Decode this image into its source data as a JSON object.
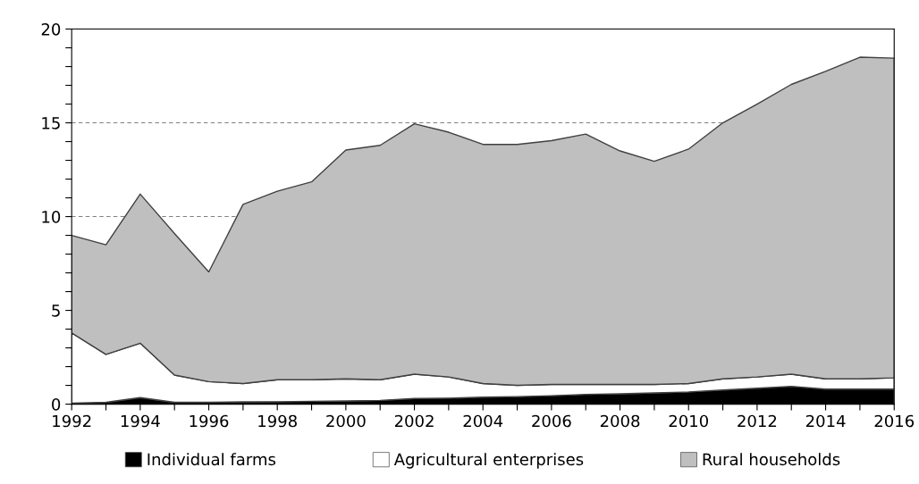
{
  "chart_data": {
    "type": "area",
    "stacked": true,
    "x": [
      1992,
      1993,
      1994,
      1995,
      1996,
      1997,
      1998,
      1999,
      2000,
      2001,
      2002,
      2003,
      2004,
      2005,
      2006,
      2007,
      2008,
      2009,
      2010,
      2011,
      2012,
      2013,
      2014,
      2015,
      2016
    ],
    "series": [
      {
        "name": "Individual farms",
        "color": "#000000",
        "values": [
          0.05,
          0.1,
          0.35,
          0.1,
          0.1,
          0.12,
          0.13,
          0.15,
          0.17,
          0.2,
          0.3,
          0.32,
          0.37,
          0.4,
          0.45,
          0.52,
          0.55,
          0.6,
          0.65,
          0.75,
          0.85,
          0.95,
          0.8,
          0.8,
          0.8
        ]
      },
      {
        "name": "Agricultural enterprises",
        "color": "#ffffff",
        "values": [
          3.75,
          2.55,
          2.9,
          1.45,
          1.1,
          0.98,
          1.17,
          1.15,
          1.18,
          1.1,
          1.3,
          1.13,
          0.73,
          0.6,
          0.6,
          0.53,
          0.5,
          0.45,
          0.45,
          0.6,
          0.6,
          0.65,
          0.55,
          0.55,
          0.6
        ]
      },
      {
        "name": "Rural households",
        "color": "#bfbfbf",
        "values": [
          5.2,
          5.85,
          7.95,
          7.55,
          5.85,
          9.55,
          10.05,
          10.55,
          12.2,
          12.5,
          13.35,
          13.05,
          12.75,
          12.85,
          13.0,
          13.35,
          12.45,
          11.9,
          12.5,
          13.65,
          14.55,
          15.45,
          16.4,
          17.15,
          17.05
        ]
      }
    ],
    "xlim": [
      1992,
      2016
    ],
    "xticks": [
      1992,
      {
        "value": 1993,
        "label": null
      },
      1994,
      {
        "value": 1995,
        "label": null
      },
      1996,
      {
        "value": 1997,
        "label": null
      },
      1998,
      {
        "value": 1999,
        "label": null
      },
      2000,
      {
        "value": 2001,
        "label": null
      },
      2002,
      {
        "value": 2003,
        "label": null
      },
      2004,
      {
        "value": 2005,
        "label": null
      },
      2006,
      {
        "value": 2007,
        "label": null
      },
      2008,
      {
        "value": 2009,
        "label": null
      },
      2010,
      {
        "value": 2011,
        "label": null
      },
      2012,
      {
        "value": 2013,
        "label": null
      },
      2014,
      {
        "value": 2015,
        "label": null
      },
      2016
    ],
    "ylim": [
      0,
      20
    ],
    "yticks": [
      0,
      {
        "value": 1,
        "label": null
      },
      {
        "value": 2,
        "label": null
      },
      {
        "value": 3,
        "label": null
      },
      {
        "value": 4,
        "label": null
      },
      5,
      {
        "value": 6,
        "label": null
      },
      {
        "value": 7,
        "label": null
      },
      {
        "value": 8,
        "label": null
      },
      {
        "value": 9,
        "label": null
      },
      10,
      {
        "value": 11,
        "label": null
      },
      {
        "value": 12,
        "label": null
      },
      {
        "value": 13,
        "label": null
      },
      {
        "value": 14,
        "label": null
      },
      15,
      {
        "value": 16,
        "label": null
      },
      {
        "value": 17,
        "label": null
      },
      {
        "value": 18,
        "label": null
      },
      {
        "value": 19,
        "label": null
      },
      20
    ],
    "grid": "y",
    "legend": "bottom"
  }
}
